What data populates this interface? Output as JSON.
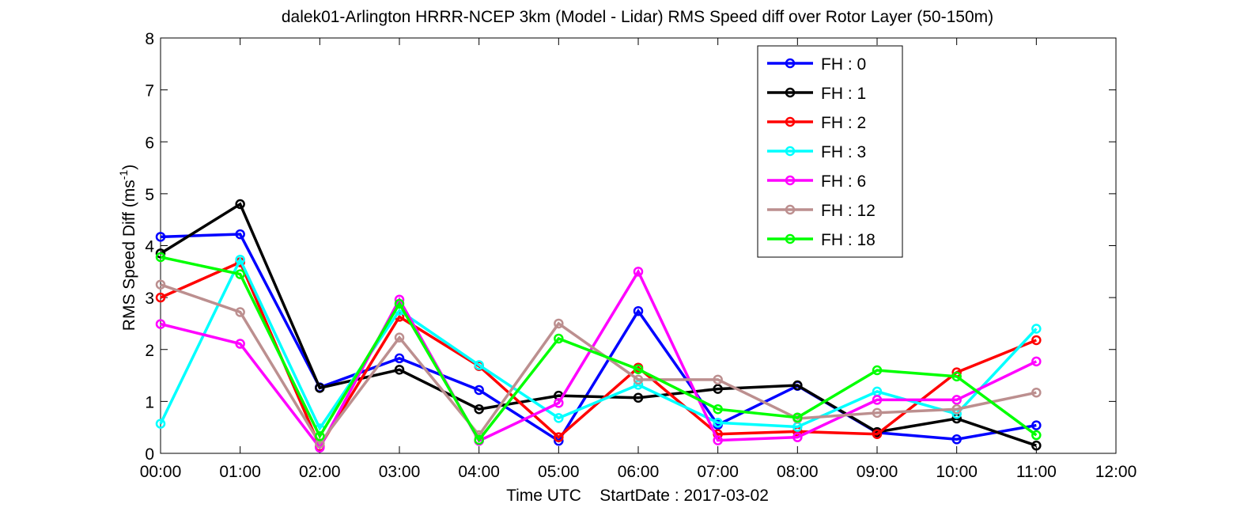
{
  "chart_data": {
    "type": "line",
    "title": "dalek01-Arlington HRRR-NCEP 3km (Model - Lidar) RMS Speed diff over Rotor Layer (50-150m)",
    "xlabel": "Time UTC    StartDate : 2017-03-02",
    "ylabel_main": "RMS Speed Diff (ms",
    "ylabel_sup": "-1",
    "ylabel_close": ")",
    "x_ticks": [
      "00:00",
      "01:00",
      "02:00",
      "03:00",
      "04:00",
      "05:00",
      "06:00",
      "07:00",
      "08:00",
      "09:00",
      "10:00",
      "11:00",
      "12:00"
    ],
    "y_ticks": [
      "0",
      "1",
      "2",
      "3",
      "4",
      "5",
      "6",
      "7",
      "8"
    ],
    "xlim": [
      0,
      12
    ],
    "ylim": [
      0,
      8
    ],
    "grid": false,
    "legend_position": "top-right",
    "x": [
      0,
      1,
      2,
      3,
      4,
      5,
      6,
      7,
      8,
      9,
      10,
      11
    ],
    "series": [
      {
        "name": "FH : 0",
        "color": "#0000ff",
        "values": [
          4.17,
          4.22,
          1.27,
          1.83,
          1.22,
          0.24,
          2.74,
          0.55,
          1.3,
          0.4,
          0.27,
          0.54
        ]
      },
      {
        "name": "FH : 1",
        "color": "#000000",
        "values": [
          3.85,
          4.8,
          1.26,
          1.61,
          0.85,
          1.11,
          1.07,
          1.24,
          1.31,
          0.41,
          0.67,
          0.15
        ]
      },
      {
        "name": "FH : 2",
        "color": "#ff0000",
        "values": [
          3.0,
          3.68,
          0.13,
          2.63,
          1.68,
          0.31,
          1.65,
          0.37,
          0.42,
          0.37,
          1.56,
          2.18
        ]
      },
      {
        "name": "FH : 3",
        "color": "#00ffff",
        "values": [
          0.57,
          3.73,
          0.48,
          2.75,
          1.7,
          0.68,
          1.32,
          0.59,
          0.51,
          1.19,
          0.76,
          2.4
        ]
      },
      {
        "name": "FH : 6",
        "color": "#ff00ff",
        "values": [
          2.49,
          2.11,
          0.11,
          2.96,
          0.24,
          0.97,
          3.5,
          0.25,
          0.31,
          1.03,
          1.03,
          1.77
        ]
      },
      {
        "name": "FH : 12",
        "color": "#bc8f8f",
        "values": [
          3.25,
          2.72,
          0.19,
          2.23,
          0.35,
          2.5,
          1.42,
          1.42,
          0.67,
          0.78,
          0.85,
          1.17
        ]
      },
      {
        "name": "FH : 18",
        "color": "#00ff00",
        "values": [
          3.78,
          3.45,
          0.33,
          2.88,
          0.26,
          2.21,
          1.62,
          0.85,
          0.69,
          1.6,
          1.48,
          0.35
        ]
      }
    ]
  }
}
